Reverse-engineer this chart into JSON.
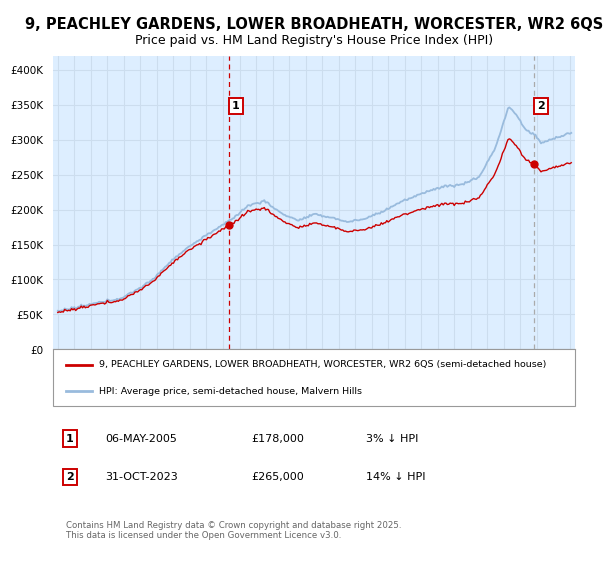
{
  "title_line1": "9, PEACHLEY GARDENS, LOWER BROADHEATH, WORCESTER, WR2 6QS",
  "title_line2": "Price paid vs. HM Land Registry's House Price Index (HPI)",
  "legend_line1": "9, PEACHLEY GARDENS, LOWER BROADHEATH, WORCESTER, WR2 6QS (semi-detached house)",
  "legend_line2": "HPI: Average price, semi-detached house, Malvern Hills",
  "annotation1_date": "06-MAY-2005",
  "annotation1_price": "£178,000",
  "annotation1_note": "3% ↓ HPI",
  "annotation2_date": "31-OCT-2023",
  "annotation2_price": "£265,000",
  "annotation2_note": "14% ↓ HPI",
  "footnote": "Contains HM Land Registry data © Crown copyright and database right 2025.\nThis data is licensed under the Open Government Licence v3.0.",
  "ylim": [
    0,
    420000
  ],
  "yticks": [
    0,
    50000,
    100000,
    150000,
    200000,
    250000,
    300000,
    350000,
    400000
  ],
  "ytick_labels": [
    "£0",
    "£50K",
    "£100K",
    "£150K",
    "£200K",
    "£250K",
    "£300K",
    "£350K",
    "£400K"
  ],
  "line_color_red": "#cc0000",
  "line_color_blue": "#99bbdd",
  "annotation_box_color": "#cc0000",
  "vline1_color": "#cc0000",
  "vline2_color": "#aaaaaa",
  "grid_color": "#ccddee",
  "background_color": "#ffffff",
  "plot_bg_color": "#ddeeff",
  "title_fontsize": 10.5,
  "subtitle_fontsize": 9,
  "sale1_year": 2005.35,
  "sale1_price": 178000,
  "sale2_year": 2023.83,
  "sale2_price": 265000,
  "xmin": 1994.7,
  "xmax": 2026.3
}
